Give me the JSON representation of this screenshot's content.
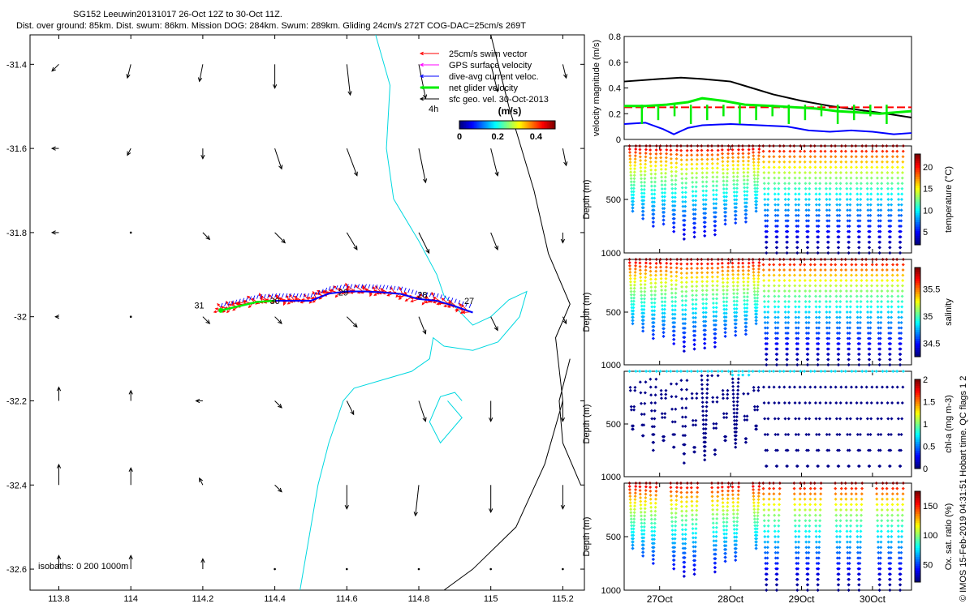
{
  "header": {
    "title": "SG152 Leeuwin20131017 26-Oct 12Z to 30-Oct 11Z.",
    "subtitle": "Dist. over ground: 85km. Dist. swum: 86km. Mission DOG: 284km. Swum: 289km. Gliding 24cm/s 272T COG-DAC=25cm/s 269T"
  },
  "colors": {
    "coast": "#00d8e0",
    "isobath": "#000000",
    "swim": "#ff0000",
    "gps": "#ff00ff",
    "dac": "#0000ff",
    "net": "#00ee00",
    "geo": "#000000",
    "bathy_blue": "#0018ff"
  },
  "chart_data": [
    {
      "type": "scatter",
      "panel": "map",
      "xticks": [
        "113.8",
        "114",
        "114.2",
        "114.4",
        "114.6",
        "114.8",
        "115",
        "115.2"
      ],
      "yticks": [
        "-31.4",
        "-31.6",
        "-31.8",
        "-32",
        "-32.2",
        "-32.4",
        "-32.6"
      ],
      "xlim": [
        113.72,
        115.26
      ],
      "ylim": [
        -32.65,
        -31.33
      ],
      "legend": {
        "items": [
          {
            "label": "25cm/s swim vector",
            "color": "#ff0000"
          },
          {
            "label": "GPS surface velocity",
            "color": "#ff00ff"
          },
          {
            "label": "dive-avg current veloc.",
            "color": "#0000ff"
          },
          {
            "label": "net glider velocity",
            "color": "#00ee00"
          },
          {
            "label": "sfc geo. vel. 30-Oct-2013",
            "color": "#000000"
          }
        ],
        "scale_label": "4h",
        "colorbar_title": "(m/s)",
        "colorbar_ticks": [
          "0",
          "0.2",
          "0.4"
        ],
        "colorbar_range": [
          0,
          0.5
        ],
        "placement": "top-right"
      },
      "day_labels": [
        {
          "text": "31",
          "lon": 114.19,
          "lat": -31.98
        },
        {
          "text": "30",
          "lon": 114.4,
          "lat": -31.97
        },
        {
          "text": "29",
          "lon": 114.59,
          "lat": -31.95
        },
        {
          "text": "28",
          "lon": 114.81,
          "lat": -31.955
        },
        {
          "text": "27",
          "lon": 114.94,
          "lat": -31.97
        }
      ],
      "isobath_note": "isobaths: 0   200  1000m",
      "glider_track": [
        [
          114.25,
          -31.985
        ],
        [
          114.3,
          -31.975
        ],
        [
          114.35,
          -31.965
        ],
        [
          114.4,
          -31.962
        ],
        [
          114.45,
          -31.962
        ],
        [
          114.5,
          -31.962
        ],
        [
          114.55,
          -31.945
        ],
        [
          114.6,
          -31.94
        ],
        [
          114.65,
          -31.94
        ],
        [
          114.7,
          -31.942
        ],
        [
          114.75,
          -31.946
        ],
        [
          114.8,
          -31.958
        ],
        [
          114.85,
          -31.962
        ],
        [
          114.9,
          -31.975
        ],
        [
          114.95,
          -31.99
        ]
      ],
      "geostrophic_arrows": [
        {
          "lon": 113.8,
          "lat": -31.4,
          "u": -0.02,
          "v": -0.02
        },
        {
          "lon": 114.0,
          "lat": -31.4,
          "u": -0.01,
          "v": -0.04
        },
        {
          "lon": 114.2,
          "lat": -31.4,
          "u": -0.01,
          "v": -0.05
        },
        {
          "lon": 114.4,
          "lat": -31.4,
          "u": 0.0,
          "v": -0.07
        },
        {
          "lon": 114.6,
          "lat": -31.4,
          "u": 0.01,
          "v": -0.09
        },
        {
          "lon": 114.8,
          "lat": -31.4,
          "u": 0.02,
          "v": -0.1
        },
        {
          "lon": 115.0,
          "lat": -31.4,
          "u": 0.02,
          "v": -0.08
        },
        {
          "lon": 115.2,
          "lat": -31.4,
          "u": 0.01,
          "v": -0.04
        },
        {
          "lon": 113.8,
          "lat": -31.6,
          "u": -0.02,
          "v": 0.0
        },
        {
          "lon": 114.0,
          "lat": -31.6,
          "u": -0.01,
          "v": -0.02
        },
        {
          "lon": 114.2,
          "lat": -31.6,
          "u": 0.0,
          "v": -0.03
        },
        {
          "lon": 114.4,
          "lat": -31.6,
          "u": 0.02,
          "v": -0.06
        },
        {
          "lon": 114.6,
          "lat": -31.6,
          "u": 0.03,
          "v": -0.08
        },
        {
          "lon": 114.8,
          "lat": -31.6,
          "u": 0.02,
          "v": -0.1
        },
        {
          "lon": 115.0,
          "lat": -31.6,
          "u": 0.02,
          "v": -0.08
        },
        {
          "lon": 115.2,
          "lat": -31.6,
          "u": 0.01,
          "v": -0.05
        },
        {
          "lon": 113.8,
          "lat": -31.8,
          "u": -0.02,
          "v": 0.0
        },
        {
          "lon": 114.0,
          "lat": -31.8,
          "u": 0.0,
          "v": 0.0
        },
        {
          "lon": 114.2,
          "lat": -31.8,
          "u": 0.02,
          "v": -0.02
        },
        {
          "lon": 114.4,
          "lat": -31.8,
          "u": 0.03,
          "v": -0.03
        },
        {
          "lon": 114.6,
          "lat": -31.8,
          "u": 0.03,
          "v": -0.05
        },
        {
          "lon": 114.8,
          "lat": -31.8,
          "u": 0.03,
          "v": -0.06
        },
        {
          "lon": 115.0,
          "lat": -31.8,
          "u": 0.02,
          "v": -0.05
        },
        {
          "lon": 115.2,
          "lat": -31.8,
          "u": 0.0,
          "v": -0.03
        },
        {
          "lon": 113.8,
          "lat": -32.0,
          "u": -0.01,
          "v": 0.0
        },
        {
          "lon": 114.0,
          "lat": -32.0,
          "u": 0.0,
          "v": 0.0
        },
        {
          "lon": 114.2,
          "lat": -32.0,
          "u": 0.02,
          "v": -0.02
        },
        {
          "lon": 114.4,
          "lat": -32.0,
          "u": 0.02,
          "v": -0.02
        },
        {
          "lon": 114.6,
          "lat": -32.0,
          "u": 0.03,
          "v": -0.03
        },
        {
          "lon": 114.8,
          "lat": -32.0,
          "u": 0.02,
          "v": -0.05
        },
        {
          "lon": 115.0,
          "lat": -32.0,
          "u": 0.02,
          "v": -0.04
        },
        {
          "lon": 115.2,
          "lat": -32.0,
          "u": 0.01,
          "v": -0.02
        },
        {
          "lon": 113.8,
          "lat": -32.2,
          "u": 0.0,
          "v": 0.04
        },
        {
          "lon": 114.0,
          "lat": -32.2,
          "u": 0.0,
          "v": 0.03
        },
        {
          "lon": 114.2,
          "lat": -32.2,
          "u": -0.02,
          "v": 0.0
        },
        {
          "lon": 114.4,
          "lat": -32.2,
          "u": 0.02,
          "v": -0.02
        },
        {
          "lon": 114.6,
          "lat": -32.2,
          "u": 0.02,
          "v": -0.04
        },
        {
          "lon": 114.8,
          "lat": -32.2,
          "u": 0.02,
          "v": -0.06
        },
        {
          "lon": 115.0,
          "lat": -32.2,
          "u": 0.0,
          "v": -0.06
        },
        {
          "lon": 115.2,
          "lat": -32.2,
          "u": 0.0,
          "v": -0.06
        },
        {
          "lon": 113.8,
          "lat": -32.4,
          "u": 0.0,
          "v": 0.06
        },
        {
          "lon": 114.0,
          "lat": -32.4,
          "u": 0.0,
          "v": 0.05
        },
        {
          "lon": 114.2,
          "lat": -32.4,
          "u": -0.01,
          "v": 0.02
        },
        {
          "lon": 114.4,
          "lat": -32.4,
          "u": 0.02,
          "v": -0.02
        },
        {
          "lon": 114.6,
          "lat": -32.4,
          "u": 0.0,
          "v": -0.07
        },
        {
          "lon": 114.8,
          "lat": -32.4,
          "u": -0.01,
          "v": -0.09
        },
        {
          "lon": 115.0,
          "lat": -32.4,
          "u": 0.0,
          "v": -0.08
        },
        {
          "lon": 115.2,
          "lat": -32.4,
          "u": 0.0,
          "v": -0.07
        },
        {
          "lon": 113.8,
          "lat": -32.6,
          "u": 0.0,
          "v": 0.04
        },
        {
          "lon": 114.0,
          "lat": -32.6,
          "u": 0.0,
          "v": 0.04
        },
        {
          "lon": 114.2,
          "lat": -32.6,
          "u": 0.0,
          "v": 0.03
        },
        {
          "lon": 114.4,
          "lat": -32.6,
          "u": 0.0,
          "v": 0.0
        },
        {
          "lon": 114.6,
          "lat": -32.6,
          "u": 0.0,
          "v": 0.0
        },
        {
          "lon": 114.8,
          "lat": -32.6,
          "u": 0.0,
          "v": 0.0
        },
        {
          "lon": 115.0,
          "lat": -32.6,
          "u": 0.0,
          "v": 0.0
        },
        {
          "lon": 115.2,
          "lat": -32.6,
          "u": 0.0,
          "v": 0.0
        }
      ]
    },
    {
      "type": "line",
      "panel": "velocity",
      "ylabel": "velocity magnitude (m/s)",
      "ylim": [
        0,
        0.8
      ],
      "yticks": [
        "0",
        "0.2",
        "0.4",
        "0.6",
        "0.8"
      ],
      "series": [
        {
          "color": "#000000",
          "x": [
            26.5,
            27.0,
            27.3,
            27.6,
            28.0,
            28.3,
            28.6,
            29.0,
            29.4,
            29.8,
            30.2,
            30.55
          ],
          "y": [
            0.45,
            0.47,
            0.48,
            0.47,
            0.45,
            0.4,
            0.35,
            0.3,
            0.26,
            0.23,
            0.2,
            0.17
          ]
        },
        {
          "color": "#0000ff",
          "x": [
            26.5,
            26.8,
            27.05,
            27.2,
            27.4,
            27.6,
            28.0,
            28.4,
            28.8,
            29.1,
            29.4,
            29.7,
            30.0,
            30.3,
            30.55
          ],
          "y": [
            0.12,
            0.13,
            0.08,
            0.04,
            0.09,
            0.11,
            0.12,
            0.11,
            0.1,
            0.07,
            0.06,
            0.07,
            0.06,
            0.04,
            0.05
          ]
        },
        {
          "color": "#ff0000",
          "x": [
            26.5,
            30.55
          ],
          "y": [
            0.25,
            0.25
          ]
        },
        {
          "color": "#00ee00",
          "x": [
            26.5,
            26.8,
            27.1,
            27.4,
            27.6,
            27.9,
            28.2,
            28.6,
            28.9,
            29.2,
            29.5,
            29.8,
            30.1,
            30.55
          ],
          "y": [
            0.26,
            0.26,
            0.27,
            0.29,
            0.32,
            0.3,
            0.27,
            0.26,
            0.25,
            0.24,
            0.22,
            0.21,
            0.2,
            0.22
          ]
        }
      ]
    },
    {
      "type": "scatter",
      "panel": "temperature",
      "ylabel": "Depth (m)",
      "cbar_label": "temperature (°C)",
      "cbar_ticks": [
        "5",
        "10",
        "15",
        "20"
      ],
      "cbar_range": [
        2,
        23
      ],
      "yticks": [
        "500",
        "1000"
      ]
    },
    {
      "type": "scatter",
      "panel": "salinity",
      "ylabel": "Depth (m)",
      "cbar_label": "salinity",
      "cbar_ticks": [
        "34.5",
        "35",
        "35.5"
      ],
      "cbar_range": [
        34.25,
        35.9
      ],
      "yticks": [
        "500",
        "1000"
      ]
    },
    {
      "type": "scatter",
      "panel": "chla",
      "ylabel": "Depth (m)",
      "cbar_label": "chl-a (mg m-3)",
      "cbar_ticks": [
        "0",
        "0.5",
        "1",
        "1.5",
        "2"
      ],
      "cbar_range": [
        0,
        2
      ],
      "yticks": [
        "500",
        "1000"
      ]
    },
    {
      "type": "scatter",
      "panel": "oxygen",
      "ylabel": "Depth (m)",
      "cbar_label": "Ox. sat. ratio (%)",
      "cbar_ticks": [
        "50",
        "100",
        "150"
      ],
      "cbar_range": [
        20,
        175
      ],
      "yticks": [
        "500",
        "1000"
      ],
      "xticks": [
        "27Oct",
        "28Oct",
        "29Oct",
        "30Oct"
      ]
    }
  ],
  "footer": {
    "credit": "© IMOS 15-Feb-2019 04:31:51 Hobart time. QC flags 1 2"
  }
}
